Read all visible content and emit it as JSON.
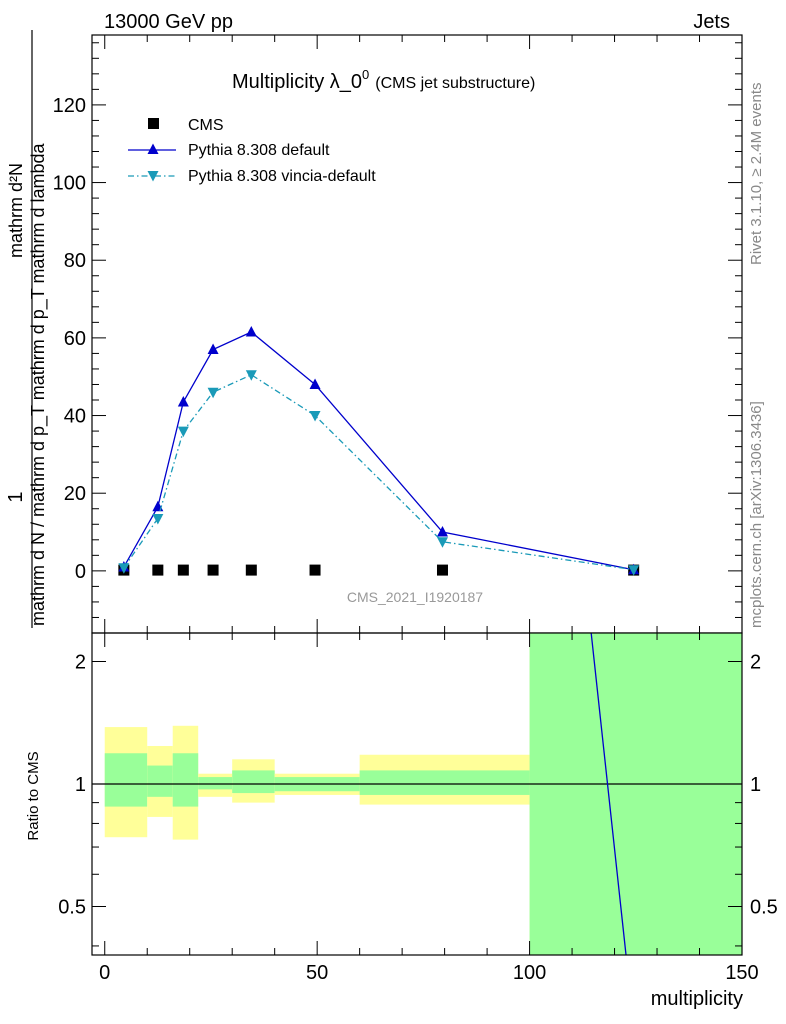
{
  "header": {
    "left": "13000 GeV pp",
    "right": "Jets"
  },
  "side": {
    "rivet": "Rivet 3.1.10, ≥ 2.4M events",
    "mcplots": "mcplots.cern.ch [arXiv:1306.3436]"
  },
  "chart_data": [
    {
      "type": "line",
      "title": "Multiplicity λ_0",
      "title_sup": "0",
      "subtitle": "(CMS jet substructure)",
      "watermark": "CMS_2021_I1920187",
      "ylabel_num": "1",
      "ylabel_den": "mathrm d N / mathrm d p_T mathrm d p_T mathrm d lambda",
      "ylabel_right": "mathrm d²N",
      "xlim": [
        -3,
        150
      ],
      "ylim": [
        -16,
        138
      ],
      "yticks": [
        0,
        20,
        40,
        60,
        80,
        100,
        120
      ],
      "ytick_labels": [
        "0",
        "20",
        "40",
        "60",
        "80",
        "100",
        "120"
      ],
      "legend": [
        "CMS",
        "Pythia 8.308 default",
        "Pythia 8.308 vincia-default"
      ],
      "legend_position": "top-left",
      "colors": {
        "data": "#000000",
        "default": "#0000cc",
        "vincia": "#1a9ab8"
      },
      "series": [
        {
          "name": "CMS",
          "style": "markers",
          "x": [
            4.5,
            12.5,
            18.5,
            25.5,
            34.5,
            49.5,
            79.5,
            124.5
          ],
          "y": [
            0.2,
            0.2,
            0.2,
            0.2,
            0.2,
            0.2,
            0.2,
            0.2
          ]
        },
        {
          "name": "Pythia 8.308 default",
          "style": "line-triangle-up",
          "x": [
            4.5,
            12.5,
            18.5,
            25.5,
            34.5,
            49.5,
            79.5,
            124.5
          ],
          "y": [
            1,
            16.5,
            43.5,
            57,
            61.5,
            48,
            10,
            0.3
          ]
        },
        {
          "name": "Pythia 8.308 vincia-default",
          "style": "dashdot-triangle-down",
          "x": [
            4.5,
            12.5,
            18.5,
            25.5,
            34.5,
            49.5,
            79.5,
            124.5
          ],
          "y": [
            0.8,
            13.5,
            36,
            46,
            50.5,
            40,
            7.5,
            0.3
          ]
        }
      ]
    },
    {
      "type": "area",
      "ylabel": "Ratio to CMS",
      "xlabel": "multiplicity",
      "xlim": [
        -3,
        150
      ],
      "ylim": [
        0.38,
        2.35
      ],
      "log_y": true,
      "xticks": [
        0,
        50,
        100,
        150
      ],
      "xtick_labels": [
        "0",
        "50",
        "100",
        "150"
      ],
      "yticks": [
        0.5,
        1,
        2
      ],
      "ytick_labels": [
        "0.5",
        "1",
        "2"
      ],
      "bins": [
        {
          "lo": 0,
          "hi": 10,
          "yellow": [
            0.74,
            1.38
          ],
          "green": [
            0.88,
            1.19
          ]
        },
        {
          "lo": 10,
          "hi": 16,
          "yellow": [
            0.83,
            1.24
          ],
          "green": [
            0.93,
            1.11
          ]
        },
        {
          "lo": 16,
          "hi": 22,
          "yellow": [
            0.73,
            1.39
          ],
          "green": [
            0.88,
            1.19
          ]
        },
        {
          "lo": 22,
          "hi": 30,
          "yellow": [
            0.93,
            1.06
          ],
          "green": [
            0.97,
            1.04
          ]
        },
        {
          "lo": 30,
          "hi": 40,
          "yellow": [
            0.9,
            1.15
          ],
          "green": [
            0.95,
            1.08
          ]
        },
        {
          "lo": 40,
          "hi": 60,
          "yellow": [
            0.94,
            1.06
          ],
          "green": [
            0.96,
            1.04
          ]
        },
        {
          "lo": 60,
          "hi": 100,
          "yellow": [
            0.89,
            1.18
          ],
          "green": [
            0.94,
            1.08
          ]
        },
        {
          "lo": 100,
          "hi": 150,
          "yellow": [
            0.38,
            2.35
          ],
          "green": [
            0.38,
            2.35
          ]
        }
      ],
      "series": [
        {
          "name": "Pythia 8.308 default",
          "x": [
            114.5,
            122.7
          ],
          "y": [
            2.35,
            0.38
          ]
        }
      ]
    }
  ]
}
